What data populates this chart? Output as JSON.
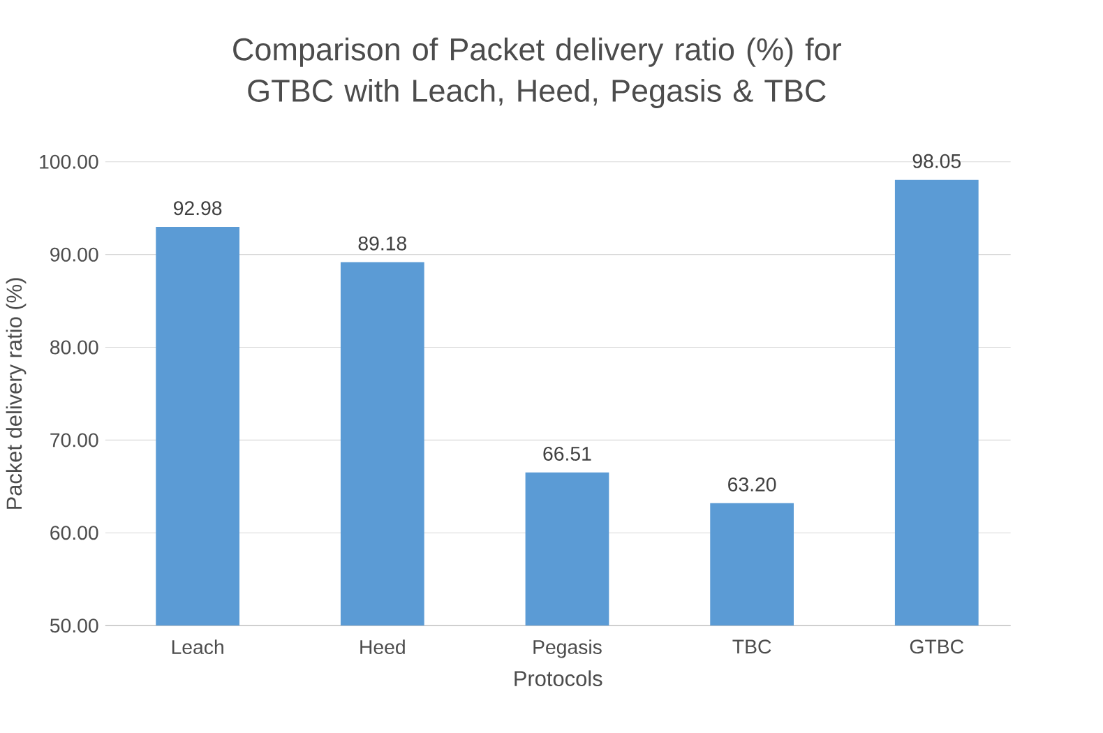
{
  "chart_data": {
    "type": "bar",
    "title": "Comparison of Packet delivery ratio (%) for GTBC with Leach, Heed, Pegasis & TBC",
    "xlabel": "Protocols",
    "ylabel": "Packet delivery ratio (%)",
    "categories": [
      "Leach",
      "Heed",
      "Pegasis",
      "TBC",
      "GTBC"
    ],
    "values": [
      92.98,
      89.18,
      66.51,
      63.2,
      98.05
    ],
    "color": "#5b9bd5",
    "value_labels": [
      "92.98",
      "89.18",
      "66.51",
      "63.20",
      "98.05"
    ],
    "ylim": [
      50,
      100
    ],
    "yticks": [
      {
        "value": 50,
        "label": "50.00"
      },
      {
        "value": 60,
        "label": "60.00"
      },
      {
        "value": 70,
        "label": "70.00"
      },
      {
        "value": 80,
        "label": "80.00"
      },
      {
        "value": 90,
        "label": "90.00"
      },
      {
        "value": 100,
        "label": "100.00"
      }
    ],
    "grid": "y"
  }
}
